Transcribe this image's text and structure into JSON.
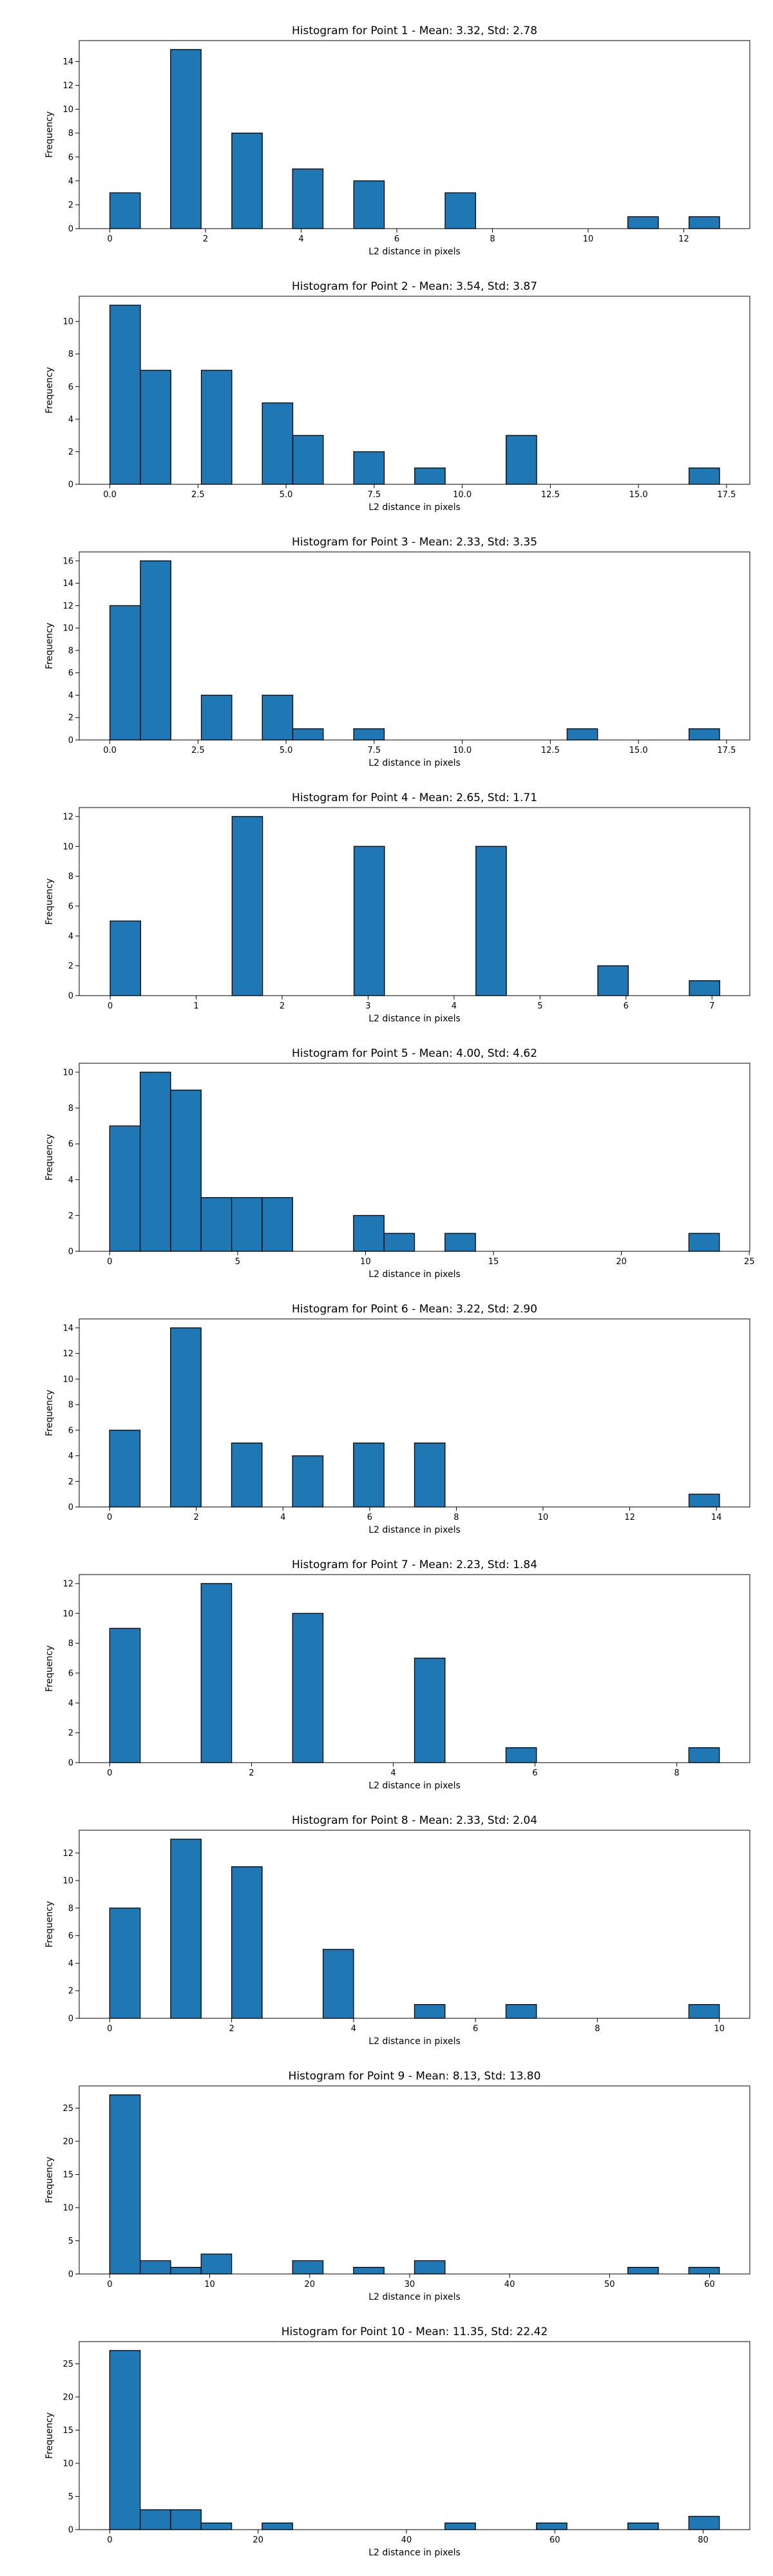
{
  "chart_data": [
    {
      "type": "bar",
      "title": "Histogram for Point 1 - Mean: 3.32, Std: 2.78",
      "xlabel": "L2 distance in pixels",
      "ylabel": "Frequency",
      "xlim": [
        -0.64,
        13.38
      ],
      "ylim": [
        0,
        15.75
      ],
      "xticks": [
        0,
        2,
        4,
        6,
        8,
        10,
        12
      ],
      "yticks": [
        0,
        2,
        4,
        6,
        8,
        10,
        12,
        14
      ],
      "bin_width": 0.6373,
      "bars": [
        {
          "x": 0.0,
          "value": 3
        },
        {
          "x": 1.27,
          "value": 15
        },
        {
          "x": 2.55,
          "value": 8
        },
        {
          "x": 3.82,
          "value": 5
        },
        {
          "x": 5.1,
          "value": 4
        },
        {
          "x": 7.01,
          "value": 3
        },
        {
          "x": 10.83,
          "value": 1
        },
        {
          "x": 12.11,
          "value": 1
        }
      ],
      "color": "#1f77b4",
      "edgecolor": "#000000",
      "grid": false
    },
    {
      "type": "bar",
      "title": "Histogram for Point 2 - Mean: 3.54, Std: 3.87",
      "xlabel": "L2 distance in pixels",
      "ylabel": "Frequency",
      "xlim": [
        -0.87,
        18.16
      ],
      "ylim": [
        0,
        11.55
      ],
      "xticks": [
        0.0,
        2.5,
        5.0,
        7.5,
        10.0,
        12.5,
        15.0,
        17.5
      ],
      "yticks": [
        0,
        2,
        4,
        6,
        8,
        10
      ],
      "bin_width": 0.865,
      "bars": [
        {
          "x": 0.0,
          "value": 11
        },
        {
          "x": 0.865,
          "value": 7
        },
        {
          "x": 2.595,
          "value": 7
        },
        {
          "x": 4.325,
          "value": 5
        },
        {
          "x": 5.19,
          "value": 3
        },
        {
          "x": 6.92,
          "value": 2
        },
        {
          "x": 8.65,
          "value": 1
        },
        {
          "x": 11.245,
          "value": 3
        },
        {
          "x": 16.435,
          "value": 1
        }
      ],
      "color": "#1f77b4",
      "edgecolor": "#000000",
      "grid": false
    },
    {
      "type": "bar",
      "title": "Histogram for Point 3 - Mean: 2.33, Std: 3.35",
      "xlabel": "L2 distance in pixels",
      "ylabel": "Frequency",
      "xlim": [
        -0.87,
        18.16
      ],
      "ylim": [
        0,
        16.8
      ],
      "xticks": [
        0.0,
        2.5,
        5.0,
        7.5,
        10.0,
        12.5,
        15.0,
        17.5
      ],
      "yticks": [
        0,
        2,
        4,
        6,
        8,
        10,
        12,
        14,
        16
      ],
      "bin_width": 0.865,
      "bars": [
        {
          "x": 0.0,
          "value": 12
        },
        {
          "x": 0.865,
          "value": 16
        },
        {
          "x": 2.595,
          "value": 4
        },
        {
          "x": 4.325,
          "value": 4
        },
        {
          "x": 5.19,
          "value": 1
        },
        {
          "x": 6.92,
          "value": 1
        },
        {
          "x": 12.975,
          "value": 1
        },
        {
          "x": 16.435,
          "value": 1
        }
      ],
      "color": "#1f77b4",
      "edgecolor": "#000000",
      "grid": false
    },
    {
      "type": "bar",
      "title": "Histogram for Point 4 - Mean: 2.65, Std: 1.71",
      "xlabel": "L2 distance in pixels",
      "ylabel": "Frequency",
      "xlim": [
        -0.36,
        7.44
      ],
      "ylim": [
        0,
        12.6
      ],
      "xticks": [
        0,
        1,
        2,
        3,
        4,
        5,
        6,
        7
      ],
      "yticks": [
        0,
        2,
        4,
        6,
        8,
        10,
        12
      ],
      "bin_width": 0.3545,
      "bars": [
        {
          "x": 0.0,
          "value": 5
        },
        {
          "x": 1.418,
          "value": 12
        },
        {
          "x": 2.836,
          "value": 10
        },
        {
          "x": 4.254,
          "value": 10
        },
        {
          "x": 5.672,
          "value": 2
        },
        {
          "x": 6.736,
          "value": 1
        }
      ],
      "color": "#1f77b4",
      "edgecolor": "#000000",
      "grid": false
    },
    {
      "type": "bar",
      "title": "Histogram for Point 5 - Mean: 4.00, Std: 4.62",
      "xlabel": "L2 distance in pixels",
      "ylabel": "Frequency",
      "xlim": [
        -1.19,
        25.02
      ],
      "ylim": [
        0,
        10.5
      ],
      "xticks": [
        0,
        5,
        10,
        15,
        20,
        25
      ],
      "yticks": [
        0,
        2,
        4,
        6,
        8,
        10
      ],
      "bin_width": 1.1915,
      "bars": [
        {
          "x": 0.0,
          "value": 7
        },
        {
          "x": 1.1915,
          "value": 10
        },
        {
          "x": 2.383,
          "value": 9
        },
        {
          "x": 3.5745,
          "value": 3
        },
        {
          "x": 4.766,
          "value": 3
        },
        {
          "x": 5.9575,
          "value": 3
        },
        {
          "x": 9.532,
          "value": 2
        },
        {
          "x": 10.7235,
          "value": 1
        },
        {
          "x": 13.1065,
          "value": 1
        },
        {
          "x": 22.6385,
          "value": 1
        }
      ],
      "color": "#1f77b4",
      "edgecolor": "#000000",
      "grid": false
    },
    {
      "type": "bar",
      "title": "Histogram for Point 6 - Mean: 3.22, Std: 2.90",
      "xlabel": "L2 distance in pixels",
      "ylabel": "Frequency",
      "xlim": [
        -0.7,
        14.77
      ],
      "ylim": [
        0,
        14.7
      ],
      "xticks": [
        0,
        2,
        4,
        6,
        8,
        10,
        12,
        14
      ],
      "yticks": [
        0,
        2,
        4,
        6,
        8,
        10,
        12,
        14
      ],
      "bin_width": 0.7035,
      "bars": [
        {
          "x": 0.0,
          "value": 6
        },
        {
          "x": 1.407,
          "value": 14
        },
        {
          "x": 2.814,
          "value": 5
        },
        {
          "x": 4.221,
          "value": 4
        },
        {
          "x": 5.628,
          "value": 5
        },
        {
          "x": 7.035,
          "value": 5
        },
        {
          "x": 13.3665,
          "value": 1
        }
      ],
      "color": "#1f77b4",
      "edgecolor": "#000000",
      "grid": false
    },
    {
      "type": "bar",
      "title": "Histogram for Point 7 - Mean: 2.23, Std: 1.84",
      "xlabel": "L2 distance in pixels",
      "ylabel": "Frequency",
      "xlim": [
        -0.43,
        9.03
      ],
      "ylim": [
        0,
        12.6
      ],
      "xticks": [
        0,
        2,
        4,
        6,
        8
      ],
      "yticks": [
        0,
        2,
        4,
        6,
        8,
        10,
        12
      ],
      "bin_width": 0.43,
      "bars": [
        {
          "x": 0.0,
          "value": 9
        },
        {
          "x": 1.29,
          "value": 12
        },
        {
          "x": 2.58,
          "value": 10
        },
        {
          "x": 4.3,
          "value": 7
        },
        {
          "x": 5.59,
          "value": 1
        },
        {
          "x": 8.17,
          "value": 1
        }
      ],
      "color": "#1f77b4",
      "edgecolor": "#000000",
      "grid": false
    },
    {
      "type": "bar",
      "title": "Histogram for Point 8 - Mean: 2.33, Std: 2.04",
      "xlabel": "L2 distance in pixels",
      "ylabel": "Frequency",
      "xlim": [
        -0.5,
        10.5
      ],
      "ylim": [
        0,
        13.65
      ],
      "xticks": [
        0,
        2,
        4,
        6,
        8,
        10
      ],
      "yticks": [
        0,
        2,
        4,
        6,
        8,
        10,
        12
      ],
      "bin_width": 0.5,
      "bars": [
        {
          "x": 0.0,
          "value": 8
        },
        {
          "x": 1.0,
          "value": 13
        },
        {
          "x": 2.0,
          "value": 11
        },
        {
          "x": 3.5,
          "value": 5
        },
        {
          "x": 5.0,
          "value": 1
        },
        {
          "x": 6.5,
          "value": 1
        },
        {
          "x": 9.5,
          "value": 1
        }
      ],
      "color": "#1f77b4",
      "edgecolor": "#000000",
      "grid": false
    },
    {
      "type": "bar",
      "title": "Histogram for Point 9 - Mean: 8.13, Std: 13.80",
      "xlabel": "L2 distance in pixels",
      "ylabel": "Frequency",
      "xlim": [
        -3.05,
        64.03
      ],
      "ylim": [
        0,
        28.35
      ],
      "xticks": [
        0,
        10,
        20,
        30,
        40,
        50,
        60
      ],
      "yticks": [
        0,
        5,
        10,
        15,
        20,
        25
      ],
      "bin_width": 3.049,
      "bars": [
        {
          "x": 0.0,
          "value": 27
        },
        {
          "x": 3.049,
          "value": 2
        },
        {
          "x": 6.098,
          "value": 1
        },
        {
          "x": 9.147,
          "value": 3
        },
        {
          "x": 18.294,
          "value": 2
        },
        {
          "x": 24.392,
          "value": 1
        },
        {
          "x": 30.49,
          "value": 2
        },
        {
          "x": 51.833,
          "value": 1
        },
        {
          "x": 57.931,
          "value": 1
        }
      ],
      "color": "#1f77b4",
      "edgecolor": "#000000",
      "grid": false
    },
    {
      "type": "bar",
      "title": "Histogram for Point 10 - Mean: 11.35, Std: 22.42",
      "xlabel": "L2 distance in pixels",
      "ylabel": "Frequency",
      "xlim": [
        -4.11,
        86.29
      ],
      "ylim": [
        0,
        28.35
      ],
      "xticks": [
        0,
        20,
        40,
        60,
        80
      ],
      "yticks": [
        0,
        5,
        10,
        15,
        20,
        25
      ],
      "bin_width": 4.109,
      "bars": [
        {
          "x": 0.0,
          "value": 27
        },
        {
          "x": 4.109,
          "value": 3
        },
        {
          "x": 8.218,
          "value": 3
        },
        {
          "x": 12.327,
          "value": 1
        },
        {
          "x": 20.545,
          "value": 1
        },
        {
          "x": 45.199,
          "value": 1
        },
        {
          "x": 57.526,
          "value": 1
        },
        {
          "x": 69.853,
          "value": 1
        },
        {
          "x": 78.071,
          "value": 2
        }
      ],
      "color": "#1f77b4",
      "edgecolor": "#000000",
      "grid": false
    }
  ]
}
